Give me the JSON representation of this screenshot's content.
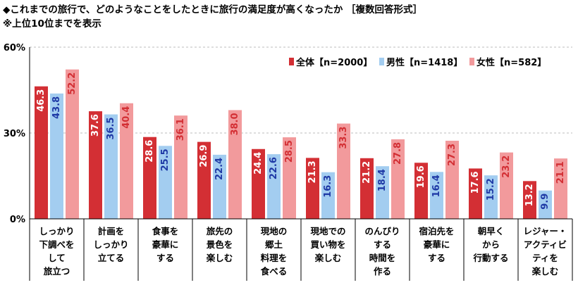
{
  "title": "◆これまでの旅行で、どのようなことをしたときに旅行の満足度が高くなったか ［複数回答形式］",
  "note": "※上位10位までを表示",
  "chart_data": {
    "type": "bar",
    "y_ticks": [
      "60%",
      "30%",
      "0%"
    ],
    "ylim": [
      0,
      60
    ],
    "legend_position": "top-right",
    "categories": [
      [
        "しっかり",
        "下調べを",
        "して",
        "旅立つ"
      ],
      [
        "計画を",
        "しっかり",
        "立てる"
      ],
      [
        "食事を",
        "豪華に",
        "する"
      ],
      [
        "旅先の",
        "景色を",
        "楽しむ"
      ],
      [
        "現地の",
        "郷土",
        "料理を",
        "食べる"
      ],
      [
        "現地での",
        "買い物を",
        "楽しむ"
      ],
      [
        "のんびり",
        "する",
        "時間を",
        "作る"
      ],
      [
        "宿泊先を",
        "豪華に",
        "する"
      ],
      [
        "朝早く",
        "から",
        "行動する"
      ],
      [
        "レジャー・",
        "アクティビ",
        "ティを",
        "楽しむ"
      ]
    ],
    "series": [
      {
        "name": "全体【n=2000】",
        "color": "#d32f34",
        "label_color": "#ffffff",
        "values": [
          46.3,
          37.6,
          28.6,
          26.9,
          24.4,
          21.3,
          21.2,
          19.6,
          17.6,
          13.2
        ],
        "labels": [
          "46.3",
          "37.6",
          "28.6",
          "26.9",
          "24.4",
          "21.3",
          "21.2",
          "19.6",
          "17.6",
          "13.2"
        ]
      },
      {
        "name": "男性【n=1418】",
        "color": "#a3cdf0",
        "label_color": "#1f3aa6",
        "values": [
          43.8,
          36.5,
          25.5,
          22.4,
          22.6,
          16.3,
          18.4,
          16.4,
          15.2,
          9.9
        ],
        "labels": [
          "43.8",
          "36.5",
          "25.5",
          "22.4",
          "22.6",
          "16.3",
          "18.4",
          "16.4",
          "15.2",
          "9.9"
        ]
      },
      {
        "name": "女性【n=582】",
        "color": "#f29a9c",
        "label_color": "#d32f34",
        "values": [
          52.2,
          40.4,
          36.1,
          38.0,
          28.5,
          33.3,
          27.8,
          27.3,
          23.2,
          21.1
        ],
        "labels": [
          "52.2",
          "40.4",
          "36.1",
          "38.0",
          "28.5",
          "33.3",
          "27.8",
          "27.3",
          "23.2",
          "21.1"
        ]
      }
    ]
  }
}
